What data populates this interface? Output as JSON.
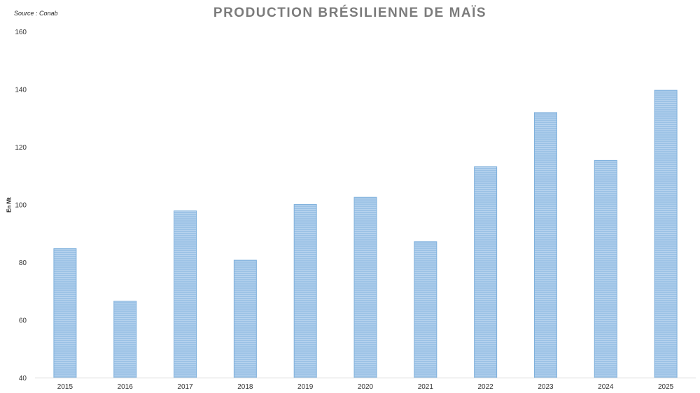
{
  "source": "Source : Conab",
  "chart_data": {
    "type": "bar",
    "title": "PRODUCTION BRÉSILIENNE DE MAÏS",
    "ylabel": "En Mt",
    "xlabel": "",
    "categories": [
      "2015",
      "2016",
      "2017",
      "2018",
      "2019",
      "2020",
      "2021",
      "2022",
      "2023",
      "2024",
      "2025"
    ],
    "values": [
      84.7,
      66.5,
      97.8,
      80.7,
      100.0,
      102.5,
      87.1,
      113.1,
      131.9,
      115.3,
      139.6
    ],
    "ylim": [
      40,
      160
    ],
    "yticks": [
      "40",
      "60",
      "80",
      "100",
      "120",
      "140",
      "160"
    ],
    "grid": false,
    "bar_color": "#9dc3e6",
    "bar_edge_color": "#7eb0dc"
  }
}
